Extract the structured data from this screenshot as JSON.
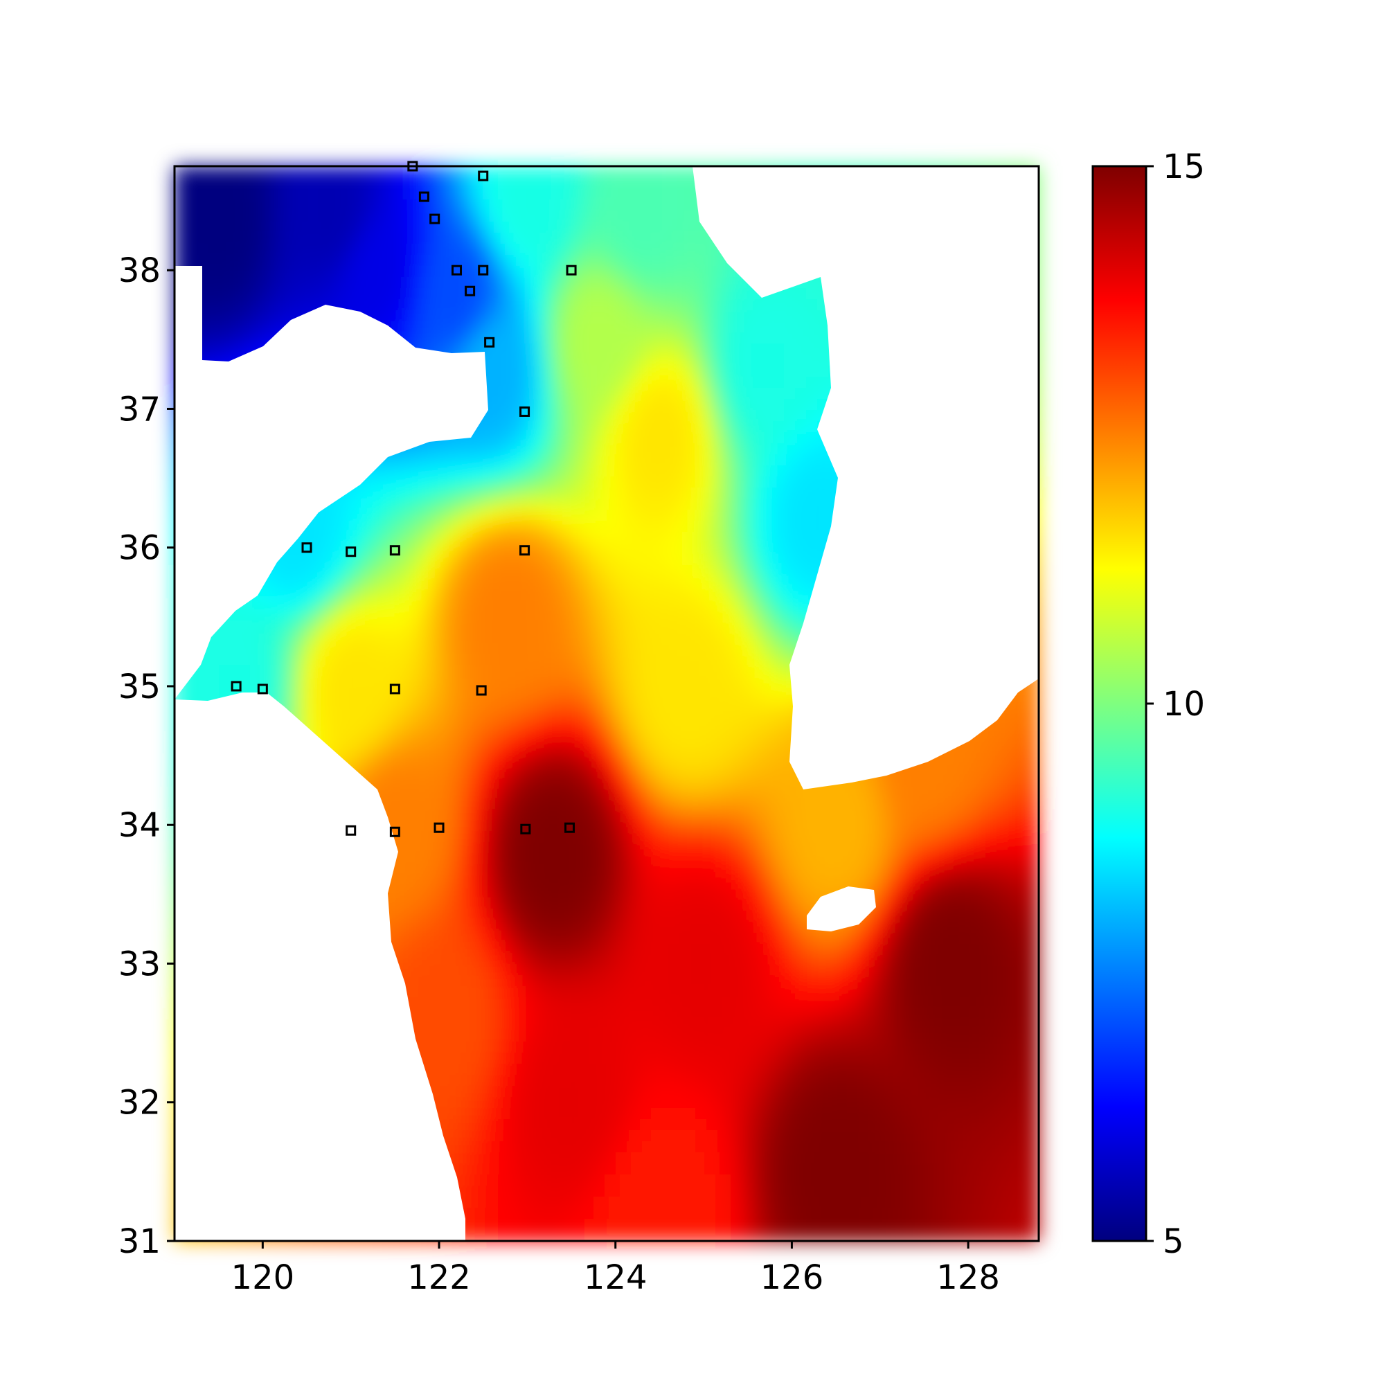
{
  "chart_data": {
    "type": "heatmap",
    "title": "",
    "xlabel": "",
    "ylabel": "",
    "xlim": [
      119.0,
      128.8
    ],
    "ylim": [
      31.0,
      38.75
    ],
    "x_ticks": [
      120,
      122,
      124,
      126,
      128
    ],
    "x_tick_labels": [
      "120",
      "122",
      "124",
      "126",
      "128"
    ],
    "y_ticks": [
      31,
      32,
      33,
      34,
      35,
      36,
      37,
      38
    ],
    "y_tick_labels": [
      "31",
      "32",
      "33",
      "34",
      "35",
      "36",
      "37",
      "38"
    ],
    "colormap": "jet",
    "colorbar": {
      "min": 5,
      "max": 15,
      "ticks": [
        5,
        10,
        15
      ],
      "tick_labels": [
        "5",
        "10",
        "15"
      ],
      "stops": [
        "#00007f",
        "#0000ff",
        "#007fff",
        "#00ffff",
        "#7fff7f",
        "#ffff00",
        "#ff7f00",
        "#ff0000",
        "#7f0000"
      ]
    },
    "grid": false,
    "field_samples": [
      {
        "lon": 119.5,
        "lat": 38.4,
        "value": 5.0
      },
      {
        "lon": 120.8,
        "lat": 38.4,
        "value": 5.5
      },
      {
        "lon": 121.3,
        "lat": 38.0,
        "value": 6.0
      },
      {
        "lon": 122.2,
        "lat": 37.8,
        "value": 7.0
      },
      {
        "lon": 122.6,
        "lat": 37.3,
        "value": 8.0
      },
      {
        "lon": 123.0,
        "lat": 38.5,
        "value": 9.0
      },
      {
        "lon": 124.3,
        "lat": 38.4,
        "value": 9.5
      },
      {
        "lon": 123.8,
        "lat": 37.5,
        "value": 10.5
      },
      {
        "lon": 124.5,
        "lat": 36.8,
        "value": 11.5
      },
      {
        "lon": 125.7,
        "lat": 37.3,
        "value": 9.0
      },
      {
        "lon": 126.3,
        "lat": 36.2,
        "value": 8.5
      },
      {
        "lon": 120.4,
        "lat": 36.1,
        "value": 8.5
      },
      {
        "lon": 119.7,
        "lat": 35.0,
        "value": 9.0
      },
      {
        "lon": 121.0,
        "lat": 35.0,
        "value": 11.5
      },
      {
        "lon": 122.8,
        "lat": 35.5,
        "value": 12.5
      },
      {
        "lon": 124.8,
        "lat": 35.0,
        "value": 11.5
      },
      {
        "lon": 121.5,
        "lat": 34.0,
        "value": 12.5
      },
      {
        "lon": 123.3,
        "lat": 33.8,
        "value": 15.0
      },
      {
        "lon": 122.0,
        "lat": 32.6,
        "value": 13.0
      },
      {
        "lon": 123.5,
        "lat": 32.0,
        "value": 14.0
      },
      {
        "lon": 126.5,
        "lat": 34.0,
        "value": 12.0
      },
      {
        "lon": 127.5,
        "lat": 34.5,
        "value": 12.5
      },
      {
        "lon": 127.8,
        "lat": 33.0,
        "value": 15.0
      },
      {
        "lon": 126.5,
        "lat": 31.5,
        "value": 15.0
      },
      {
        "lon": 124.5,
        "lat": 31.2,
        "value": 13.5
      },
      {
        "lon": 125.0,
        "lat": 33.0,
        "value": 14.0
      }
    ],
    "stations": [
      {
        "lon": 121.7,
        "lat": 38.75
      },
      {
        "lon": 122.5,
        "lat": 38.68
      },
      {
        "lon": 121.83,
        "lat": 38.53
      },
      {
        "lon": 121.95,
        "lat": 38.37
      },
      {
        "lon": 122.2,
        "lat": 38.0
      },
      {
        "lon": 122.5,
        "lat": 38.0
      },
      {
        "lon": 123.5,
        "lat": 38.0
      },
      {
        "lon": 122.35,
        "lat": 37.85
      },
      {
        "lon": 122.57,
        "lat": 37.48
      },
      {
        "lon": 122.97,
        "lat": 36.98
      },
      {
        "lon": 120.5,
        "lat": 36.0
      },
      {
        "lon": 121.0,
        "lat": 35.97
      },
      {
        "lon": 121.5,
        "lat": 35.98
      },
      {
        "lon": 122.97,
        "lat": 35.98
      },
      {
        "lon": 119.7,
        "lat": 35.0
      },
      {
        "lon": 120.0,
        "lat": 34.98
      },
      {
        "lon": 121.5,
        "lat": 34.98
      },
      {
        "lon": 122.48,
        "lat": 34.97
      },
      {
        "lon": 121.0,
        "lat": 33.96
      },
      {
        "lon": 121.5,
        "lat": 33.95
      },
      {
        "lon": 122.0,
        "lat": 33.98
      },
      {
        "lon": 122.98,
        "lat": 33.97
      },
      {
        "lon": 123.48,
        "lat": 33.98
      }
    ]
  }
}
